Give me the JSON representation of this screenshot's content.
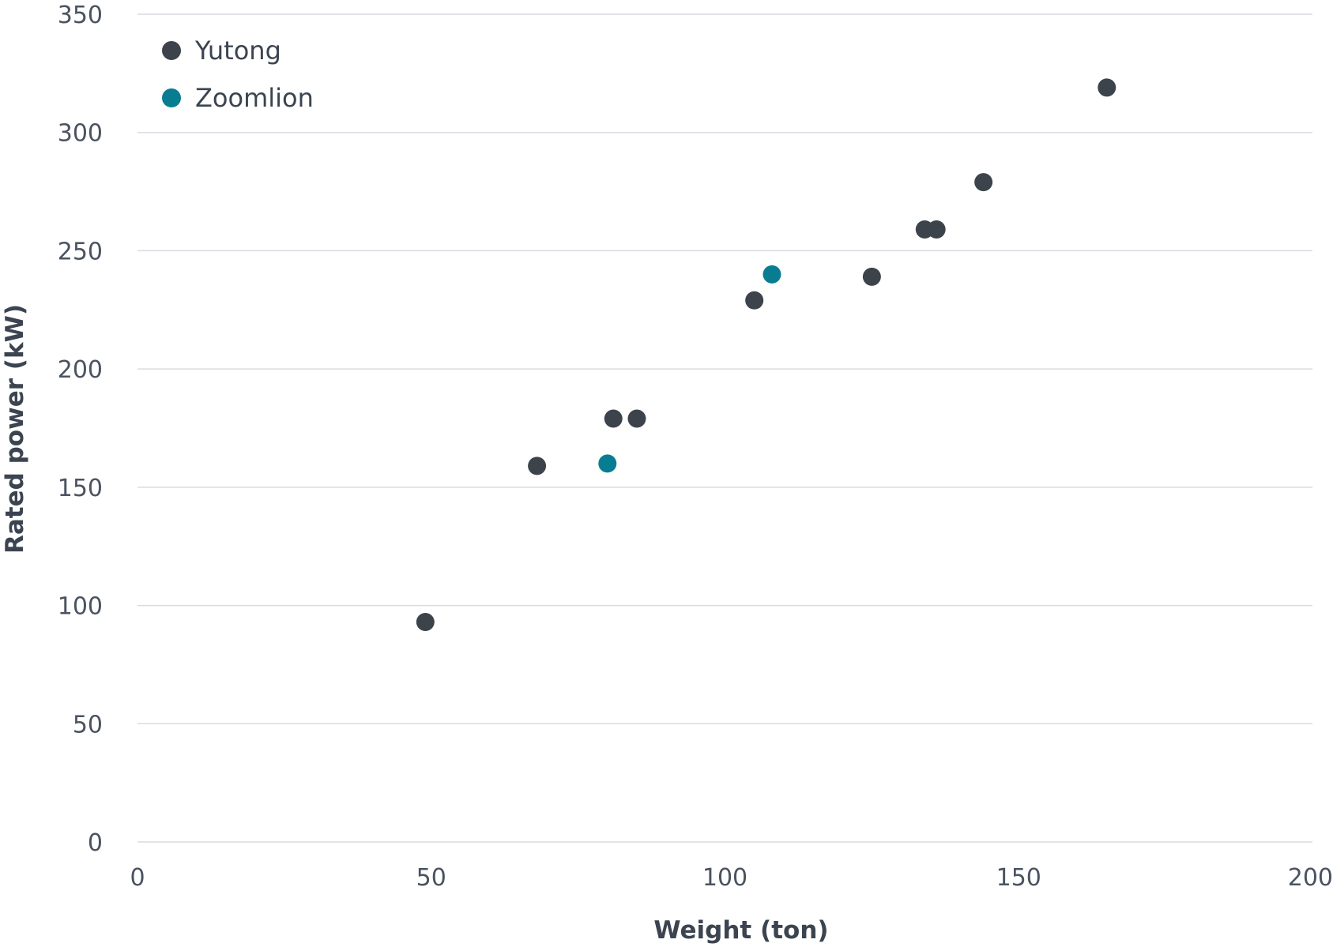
{
  "chart_data": {
    "type": "scatter",
    "title": "",
    "xlabel": "Weight (ton)",
    "ylabel": "Rated power (kW)",
    "xlim": [
      0,
      200
    ],
    "ylim": [
      0,
      350
    ],
    "x_ticks": [
      0,
      50,
      100,
      150,
      200
    ],
    "y_ticks": [
      0,
      50,
      100,
      150,
      200,
      250,
      300,
      350
    ],
    "x_tick_labels": [
      "0",
      "50",
      "100",
      "150",
      "200"
    ],
    "y_tick_labels": [
      "0",
      "50",
      "100",
      "150",
      "200",
      "250",
      "300",
      "350"
    ],
    "grid": "horizontal",
    "legend_position": "top-left",
    "series": [
      {
        "name": "Yutong",
        "color": "#3c434b",
        "points": [
          {
            "x": 49,
            "y": 93
          },
          {
            "x": 68,
            "y": 159
          },
          {
            "x": 81,
            "y": 179
          },
          {
            "x": 85,
            "y": 179
          },
          {
            "x": 105,
            "y": 229
          },
          {
            "x": 125,
            "y": 239
          },
          {
            "x": 134,
            "y": 259
          },
          {
            "x": 136,
            "y": 259
          },
          {
            "x": 144,
            "y": 279
          },
          {
            "x": 165,
            "y": 319
          }
        ]
      },
      {
        "name": "Zoomlion",
        "color": "#087d91",
        "points": [
          {
            "x": 80,
            "y": 160
          },
          {
            "x": 108,
            "y": 240
          }
        ]
      }
    ]
  }
}
